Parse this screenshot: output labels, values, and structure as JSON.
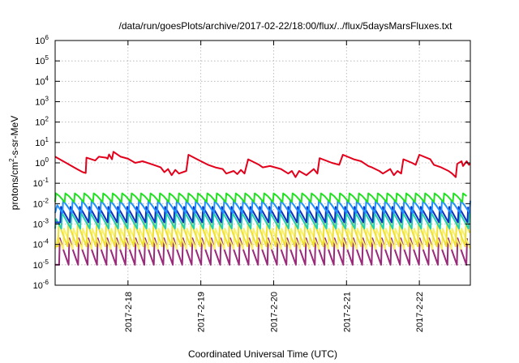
{
  "chart_data": {
    "type": "line",
    "title": "/data/run/goesPlots/archive/2017-02-22/18:00/flux/../flux/5daysMarsFluxes.txt",
    "xlabel": "Coordinated Universal Time (UTC)",
    "ylabel": "protons/cm²-s-sr-MeV",
    "ylabel_parts": {
      "base": "protons/cm",
      "sup": "2",
      "rest": "-s-sr-MeV"
    },
    "xlim": [
      0,
      5.7
    ],
    "ylim_log10": [
      -6,
      6
    ],
    "yscale": "log",
    "grid": true,
    "x_ticks": [
      {
        "x": 1,
        "label": "2017-2-18"
      },
      {
        "x": 2,
        "label": "2017-2-19"
      },
      {
        "x": 3,
        "label": "2017-2-20"
      },
      {
        "x": 4,
        "label": "2017-2-21"
      },
      {
        "x": 5,
        "label": "2017-2-22"
      }
    ],
    "y_ticks": [
      {
        "exp": -6,
        "label": "10",
        "sup": "-6"
      },
      {
        "exp": -5,
        "label": "10",
        "sup": "-5"
      },
      {
        "exp": -4,
        "label": "10",
        "sup": "-4"
      },
      {
        "exp": -3,
        "label": "10",
        "sup": "-3"
      },
      {
        "exp": -2,
        "label": "10",
        "sup": "-2"
      },
      {
        "exp": -1,
        "label": "10",
        "sup": "-1"
      },
      {
        "exp": 0,
        "label": "10",
        "sup": "0"
      },
      {
        "exp": 1,
        "label": "10",
        "sup": "1"
      },
      {
        "exp": 2,
        "label": "10",
        "sup": "2"
      },
      {
        "exp": 3,
        "label": "10",
        "sup": "3"
      },
      {
        "exp": 4,
        "label": "10",
        "sup": "4"
      },
      {
        "exp": 5,
        "label": "10",
        "sup": "5"
      },
      {
        "exp": 6,
        "label": "10",
        "sup": "6"
      }
    ],
    "series": [
      {
        "color": "#e3001b",
        "points": [
          [
            0.0,
            2.0
          ],
          [
            0.15,
            1.0
          ],
          [
            0.3,
            0.5
          ],
          [
            0.38,
            0.35
          ],
          [
            0.42,
            0.32
          ],
          [
            0.43,
            1.8
          ],
          [
            0.55,
            1.3
          ],
          [
            0.6,
            2.0
          ],
          [
            0.7,
            1.8
          ],
          [
            0.72,
            1.6
          ],
          [
            0.74,
            2.6
          ],
          [
            0.78,
            1.5
          ],
          [
            0.8,
            3.5
          ],
          [
            0.9,
            2.0
          ],
          [
            1.0,
            1.6
          ],
          [
            1.1,
            1.0
          ],
          [
            1.2,
            1.2
          ],
          [
            1.35,
            0.8
          ],
          [
            1.45,
            0.6
          ],
          [
            1.5,
            0.35
          ],
          [
            1.55,
            0.5
          ],
          [
            1.6,
            0.25
          ],
          [
            1.65,
            0.45
          ],
          [
            1.7,
            0.3
          ],
          [
            1.8,
            0.4
          ],
          [
            1.83,
            2.5
          ],
          [
            1.95,
            1.5
          ],
          [
            2.1,
            0.8
          ],
          [
            2.2,
            0.6
          ],
          [
            2.3,
            0.5
          ],
          [
            2.35,
            0.3
          ],
          [
            2.45,
            0.4
          ],
          [
            2.5,
            0.28
          ],
          [
            2.55,
            0.45
          ],
          [
            2.6,
            0.3
          ],
          [
            2.65,
            1.5
          ],
          [
            2.8,
            0.8
          ],
          [
            2.85,
            0.6
          ],
          [
            2.95,
            0.7
          ],
          [
            3.1,
            0.5
          ],
          [
            3.2,
            0.3
          ],
          [
            3.25,
            0.4
          ],
          [
            3.3,
            0.2
          ],
          [
            3.35,
            0.4
          ],
          [
            3.45,
            0.25
          ],
          [
            3.55,
            0.5
          ],
          [
            3.6,
            0.3
          ],
          [
            3.63,
            1.7
          ],
          [
            3.8,
            1.0
          ],
          [
            3.9,
            0.8
          ],
          [
            3.95,
            2.5
          ],
          [
            4.1,
            1.5
          ],
          [
            4.2,
            1.2
          ],
          [
            4.3,
            0.7
          ],
          [
            4.35,
            0.6
          ],
          [
            4.45,
            0.4
          ],
          [
            4.5,
            0.3
          ],
          [
            4.6,
            0.5
          ],
          [
            4.65,
            0.25
          ],
          [
            4.7,
            0.4
          ],
          [
            4.75,
            0.3
          ],
          [
            4.78,
            1.5
          ],
          [
            4.9,
            1.0
          ],
          [
            4.95,
            0.8
          ],
          [
            5.0,
            2.5
          ],
          [
            5.15,
            1.5
          ],
          [
            5.2,
            0.8
          ],
          [
            5.3,
            0.6
          ],
          [
            5.4,
            0.4
          ],
          [
            5.45,
            0.3
          ],
          [
            5.5,
            0.2
          ],
          [
            5.52,
            0.9
          ],
          [
            5.58,
            1.2
          ],
          [
            5.6,
            0.7
          ],
          [
            5.65,
            1.2
          ],
          [
            5.68,
            0.8
          ],
          [
            5.7,
            0.9
          ]
        ]
      },
      {
        "color": "#22e022",
        "sawtooth": {
          "start": 0,
          "period": 0.13,
          "high": 0.032,
          "low": 0.012
        }
      },
      {
        "color": "#1e90ff",
        "sawtooth": {
          "start": 0.03,
          "period": 0.13,
          "high": 0.014,
          "low": 0.0035
        }
      },
      {
        "color": "#1030c0",
        "sawtooth": {
          "start": 0.06,
          "period": 0.13,
          "high": 0.007,
          "low": 0.0012
        }
      },
      {
        "color": "#20d0b0",
        "sawtooth": {
          "start": 0.045,
          "period": 0.13,
          "high": 0.0035,
          "low": 0.0006
        }
      },
      {
        "color": "#f0e030",
        "sawtooth": {
          "start": 0.09,
          "period": 0.13,
          "high": 0.0012,
          "low": 8e-05
        }
      },
      {
        "color": "#f8f070",
        "sawtooth": {
          "start": 0.02,
          "period": 0.13,
          "high": 0.0006,
          "low": 6e-05
        }
      },
      {
        "color": "#9a2a7a",
        "sawtooth": {
          "start": 0.075,
          "period": 0.13,
          "high": 0.0002,
          "low": 1e-05
        }
      }
    ]
  }
}
